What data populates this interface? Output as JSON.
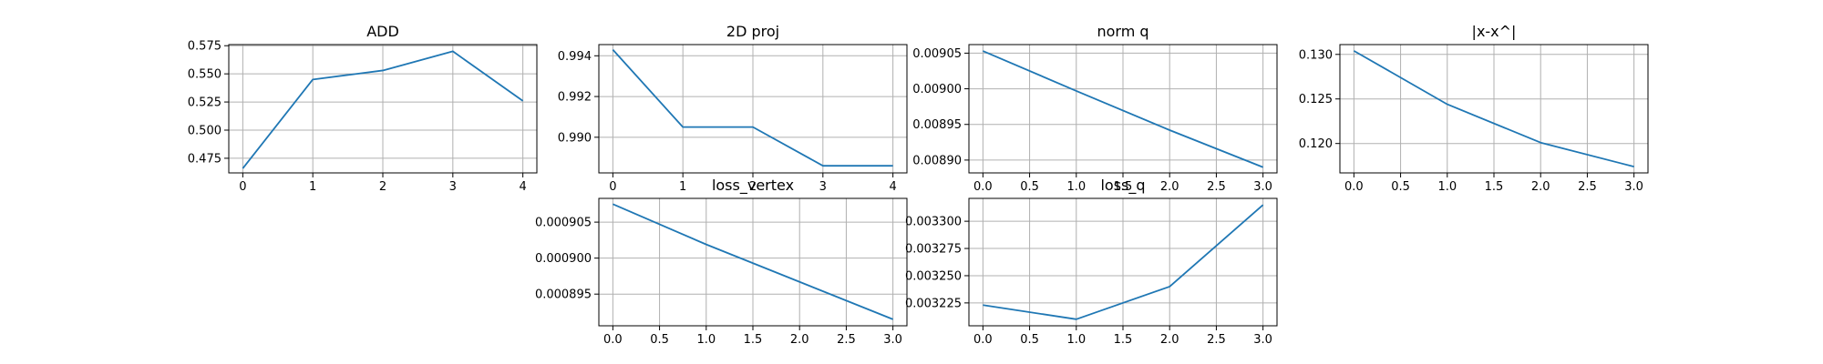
{
  "line_color": "#1f77b4",
  "chart_data": [
    {
      "type": "line",
      "title": "ADD",
      "x": [
        0,
        1,
        2,
        3,
        4
      ],
      "series": [
        {
          "values": [
            0.466,
            0.545,
            0.553,
            0.57,
            0.526
          ]
        }
      ],
      "xlim": [
        -0.2,
        4.2
      ],
      "ylim": [
        0.462,
        0.576
      ],
      "xticks": [
        0,
        1,
        2,
        3,
        4
      ],
      "xtick_labels": [
        "0",
        "1",
        "2",
        "3",
        "4"
      ],
      "yticks": [
        0.475,
        0.5,
        0.525,
        0.55,
        0.575
      ],
      "ytick_labels": [
        "0.475",
        "0.500",
        "0.525",
        "0.550",
        "0.575"
      ],
      "grid": true
    },
    {
      "type": "line",
      "title": "2D proj",
      "x": [
        0,
        1,
        2,
        3,
        4
      ],
      "series": [
        {
          "values": [
            0.9943,
            0.9905,
            0.9905,
            0.9886,
            0.9886
          ]
        }
      ],
      "xlim": [
        -0.2,
        4.2
      ],
      "ylim": [
        0.98825,
        0.99455
      ],
      "xticks": [
        0,
        1,
        2,
        3,
        4
      ],
      "xtick_labels": [
        "0",
        "1",
        "2",
        "3",
        "4"
      ],
      "yticks": [
        0.99,
        0.992,
        0.994
      ],
      "ytick_labels": [
        "0.990",
        "0.992",
        "0.994"
      ],
      "grid": true
    },
    {
      "type": "line",
      "title": "norm q",
      "x": [
        0,
        1,
        2,
        3
      ],
      "series": [
        {
          "values": [
            0.009053,
            0.008997,
            0.008942,
            0.00889
          ]
        }
      ],
      "xlim": [
        -0.15,
        3.15
      ],
      "ylim": [
        0.008882,
        0.009062
      ],
      "xticks": [
        0,
        0.5,
        1,
        1.5,
        2,
        2.5,
        3
      ],
      "xtick_labels": [
        "0.0",
        "0.5",
        "1.0",
        "1.5",
        "2.0",
        "2.5",
        "3.0"
      ],
      "yticks": [
        0.0089,
        0.00895,
        0.009,
        0.00905
      ],
      "ytick_labels": [
        "0.00890",
        "0.00895",
        "0.00900",
        "0.00905"
      ],
      "grid": true
    },
    {
      "type": "line",
      "title": "|x-x^|",
      "x": [
        0,
        1,
        2,
        3
      ],
      "series": [
        {
          "values": [
            0.1304,
            0.1244,
            0.1201,
            0.1174
          ]
        }
      ],
      "xlim": [
        -0.15,
        3.15
      ],
      "ylim": [
        0.1167,
        0.1311
      ],
      "xticks": [
        0,
        0.5,
        1,
        1.5,
        2,
        2.5,
        3
      ],
      "xtick_labels": [
        "0.0",
        "0.5",
        "1.0",
        "1.5",
        "2.0",
        "2.5",
        "3.0"
      ],
      "yticks": [
        0.12,
        0.125,
        0.13
      ],
      "ytick_labels": [
        "0.120",
        "0.125",
        "0.130"
      ],
      "grid": true
    },
    {
      "type": "line",
      "title": "loss_vertex",
      "x": [
        0,
        1,
        2,
        3
      ],
      "series": [
        {
          "values": [
            0.0009075,
            0.0009019,
            0.0008967,
            0.0008915
          ]
        }
      ],
      "xlim": [
        -0.15,
        3.15
      ],
      "ylim": [
        0.0008906,
        0.0009083
      ],
      "xticks": [
        0,
        0.5,
        1,
        1.5,
        2,
        2.5,
        3
      ],
      "xtick_labels": [
        "0.0",
        "0.5",
        "1.0",
        "1.5",
        "2.0",
        "2.5",
        "3.0"
      ],
      "yticks": [
        0.000895,
        0.0009,
        0.000905
      ],
      "ytick_labels": [
        "0.000895",
        "0.000900",
        "0.000905"
      ],
      "grid": true
    },
    {
      "type": "line",
      "title": "loss_q",
      "x": [
        0,
        1,
        2,
        3
      ],
      "series": [
        {
          "values": [
            0.003223,
            0.00321,
            0.00324,
            0.003315
          ]
        }
      ],
      "xlim": [
        -0.15,
        3.15
      ],
      "ylim": [
        0.003204,
        0.003321
      ],
      "xticks": [
        0,
        0.5,
        1,
        1.5,
        2,
        2.5,
        3
      ],
      "xtick_labels": [
        "0.0",
        "0.5",
        "1.0",
        "1.5",
        "2.0",
        "2.5",
        "3.0"
      ],
      "yticks": [
        0.003225,
        0.00325,
        0.003275,
        0.0033
      ],
      "ytick_labels": [
        "0.003225",
        "0.003250",
        "0.003275",
        "0.003300"
      ],
      "grid": true
    }
  ]
}
